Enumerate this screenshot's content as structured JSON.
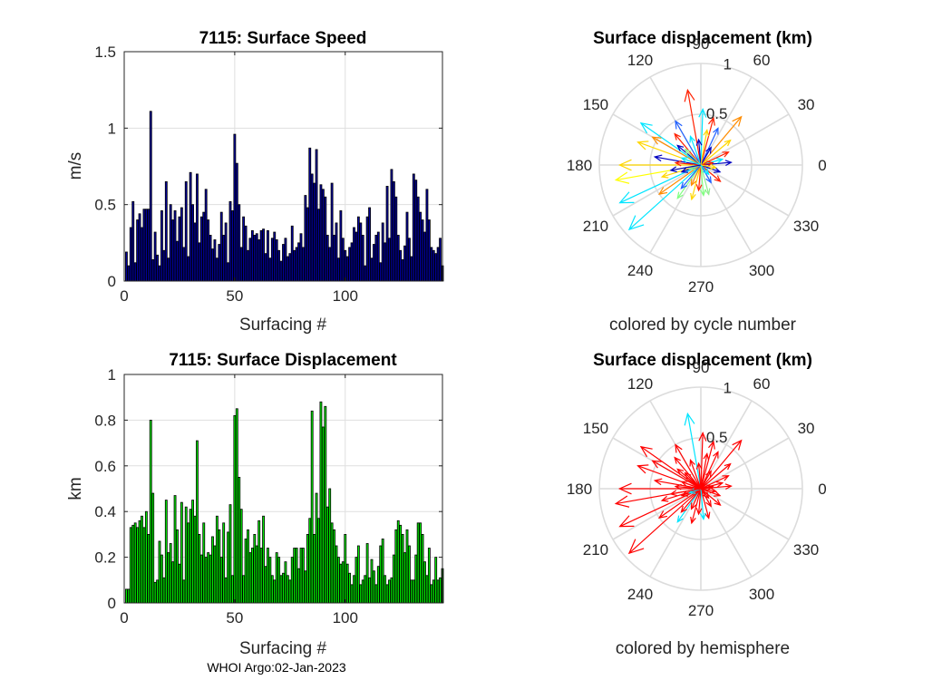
{
  "footer": "WHOI Argo:02-Jan-2023",
  "chart_data": [
    {
      "type": "bar",
      "id": "speed",
      "title": "7115: Surface Speed",
      "xlabel": "Surfacing #",
      "ylabel": "m/s",
      "xlim": [
        0,
        144
      ],
      "ylim": [
        0,
        1.5
      ],
      "xticks": [
        "0",
        "50",
        "100"
      ],
      "yticks": [
        "0",
        "0.5",
        "1",
        "1.5"
      ],
      "bar_color": "#0000a0",
      "values": [
        0.19,
        0.1,
        0.35,
        0.52,
        0.12,
        0.4,
        0.44,
        0.35,
        0.47,
        0.47,
        0.47,
        1.11,
        0.14,
        0.32,
        0.17,
        0.1,
        0.46,
        0.2,
        0.65,
        0.15,
        0.5,
        0.4,
        0.46,
        0.26,
        0.42,
        0.48,
        0.22,
        0.65,
        0.16,
        0.71,
        0.5,
        0.38,
        0.7,
        0.25,
        0.42,
        0.45,
        0.6,
        0.4,
        0.3,
        0.21,
        0.27,
        0.15,
        0.24,
        0.45,
        0.3,
        0.38,
        0.12,
        0.52,
        0.46,
        0.96,
        0.77,
        0.5,
        0.22,
        0.42,
        0.36,
        0.2,
        0.28,
        0.33,
        0.3,
        0.31,
        0.27,
        0.33,
        0.34,
        0.18,
        0.33,
        0.15,
        0.28,
        0.32,
        0.27,
        0.2,
        0.13,
        0.24,
        0.28,
        0.16,
        0.18,
        0.36,
        0.2,
        0.22,
        0.25,
        0.31,
        0.22,
        0.56,
        0.48,
        0.87,
        0.7,
        0.64,
        0.86,
        0.47,
        0.63,
        0.6,
        0.55,
        0.3,
        0.22,
        0.64,
        0.3,
        0.38,
        0.15,
        0.46,
        0.28,
        0.2,
        0.16,
        0.22,
        0.25,
        0.35,
        0.32,
        0.42,
        0.38,
        0.3,
        0.1,
        0.42,
        0.48,
        0.15,
        0.24,
        0.3,
        0.32,
        0.12,
        0.38,
        0.25,
        0.62,
        0.28,
        0.73,
        0.65,
        0.55,
        0.3,
        0.2,
        0.14,
        0.23,
        0.45,
        0.28,
        0.16,
        0.7,
        0.66,
        0.55,
        0.45,
        0.4,
        0.32,
        0.6,
        0.4,
        0.22,
        0.2,
        0.18,
        0.22,
        0.28,
        0.1
      ]
    },
    {
      "type": "bar",
      "id": "displacement",
      "title": "7115: Surface Displacement",
      "xlabel": "Surfacing #",
      "ylabel": "km",
      "xlim": [
        0,
        144
      ],
      "ylim": [
        0,
        1
      ],
      "xticks": [
        "0",
        "50",
        "100"
      ],
      "yticks": [
        "0",
        "0.2",
        "0.4",
        "0.6",
        "0.8",
        "1"
      ],
      "bar_color": "#00ee00",
      "values": [
        0.06,
        0.06,
        0.33,
        0.34,
        0.35,
        0.33,
        0.36,
        0.38,
        0.33,
        0.4,
        0.3,
        0.8,
        0.48,
        0.09,
        0.1,
        0.27,
        0.21,
        0.11,
        0.45,
        0.22,
        0.26,
        0.18,
        0.47,
        0.32,
        0.17,
        0.44,
        0.1,
        0.42,
        0.35,
        0.41,
        0.45,
        0.38,
        0.71,
        0.3,
        0.21,
        0.35,
        0.2,
        0.22,
        0.21,
        0.29,
        0.25,
        0.38,
        0.32,
        0.2,
        0.35,
        0.11,
        0.31,
        0.43,
        0.12,
        0.82,
        0.85,
        0.55,
        0.41,
        0.12,
        0.28,
        0.32,
        0.22,
        0.24,
        0.3,
        0.25,
        0.36,
        0.24,
        0.38,
        0.16,
        0.24,
        0.2,
        0.12,
        0.1,
        0.22,
        0.2,
        0.12,
        0.13,
        0.18,
        0.12,
        0.1,
        0.2,
        0.24,
        0.24,
        0.15,
        0.24,
        0.24,
        0.14,
        0.3,
        0.37,
        0.84,
        0.3,
        0.48,
        0.37,
        0.88,
        0.77,
        0.86,
        0.42,
        0.5,
        0.35,
        0.32,
        0.25,
        0.2,
        0.17,
        0.18,
        0.3,
        0.17,
        0.13,
        0.08,
        0.12,
        0.2,
        0.25,
        0.08,
        0.1,
        0.12,
        0.26,
        0.11,
        0.19,
        0.14,
        0.08,
        0.16,
        0.25,
        0.28,
        0.12,
        0.08,
        0.1,
        0.11,
        0.21,
        0.32,
        0.36,
        0.34,
        0.3,
        0.22,
        0.32,
        0.25,
        0.1,
        0.1,
        0.21,
        0.35,
        0.35,
        0.3,
        0.18,
        0.12,
        0.24,
        0.08,
        0.1,
        0.2,
        0.1,
        0.11,
        0.15
      ]
    },
    {
      "type": "polar",
      "id": "compass-cycle",
      "title": "Surface displacement (km)",
      "caption": "colored by cycle number",
      "r_max": 1,
      "rticks": [
        "0.5",
        "1"
      ],
      "angle_labels": [
        "0",
        "30",
        "60",
        "90",
        "120",
        "150",
        "180",
        "210",
        "240",
        "270",
        "300",
        "330"
      ],
      "arrows": [
        {
          "deg": 180,
          "len": 0.8,
          "color": "#ffd700"
        },
        {
          "deg": 190,
          "len": 0.85,
          "color": "#ffff00"
        },
        {
          "deg": 205,
          "len": 0.88,
          "color": "#00e5ff"
        },
        {
          "deg": 222,
          "len": 0.95,
          "color": "#00e5ff"
        },
        {
          "deg": 160,
          "len": 0.66,
          "color": "#ffd700"
        },
        {
          "deg": 145,
          "len": 0.72,
          "color": "#00e5ff"
        },
        {
          "deg": 150,
          "len": 0.55,
          "color": "#ff8c00"
        },
        {
          "deg": 100,
          "len": 0.75,
          "color": "#ff2000"
        },
        {
          "deg": 88,
          "len": 0.55,
          "color": "#00e5ff"
        },
        {
          "deg": 75,
          "len": 0.48,
          "color": "#ff2000"
        },
        {
          "deg": 50,
          "len": 0.62,
          "color": "#ff8c00"
        },
        {
          "deg": 65,
          "len": 0.4,
          "color": "#2060ff"
        },
        {
          "deg": 120,
          "len": 0.5,
          "color": "#2060ff"
        },
        {
          "deg": 130,
          "len": 0.4,
          "color": "#ff2000"
        },
        {
          "deg": 170,
          "len": 0.46,
          "color": "#0000c0"
        },
        {
          "deg": 197,
          "len": 0.4,
          "color": "#ffd700"
        },
        {
          "deg": 215,
          "len": 0.5,
          "color": "#ff8c00"
        },
        {
          "deg": 235,
          "len": 0.4,
          "color": "#80ff80"
        },
        {
          "deg": 255,
          "len": 0.35,
          "color": "#ffd700"
        },
        {
          "deg": 265,
          "len": 0.25,
          "color": "#ff2000"
        },
        {
          "deg": 285,
          "len": 0.3,
          "color": "#90ee90"
        },
        {
          "deg": 300,
          "len": 0.2,
          "color": "#2060ff"
        },
        {
          "deg": 320,
          "len": 0.25,
          "color": "#ff2000"
        },
        {
          "deg": 340,
          "len": 0.2,
          "color": "#0000c0"
        },
        {
          "deg": 5,
          "len": 0.3,
          "color": "#0000c0"
        },
        {
          "deg": 15,
          "len": 0.22,
          "color": "#00e5ff"
        },
        {
          "deg": 25,
          "len": 0.3,
          "color": "#ff2000"
        },
        {
          "deg": 40,
          "len": 0.38,
          "color": "#ffd700"
        },
        {
          "deg": 110,
          "len": 0.3,
          "color": "#00e5ff"
        },
        {
          "deg": 140,
          "len": 0.3,
          "color": "#0000c0"
        },
        {
          "deg": 175,
          "len": 0.25,
          "color": "#ff2000"
        },
        {
          "deg": 200,
          "len": 0.2,
          "color": "#0000c0"
        },
        {
          "deg": 245,
          "len": 0.22,
          "color": "#ff8c00"
        },
        {
          "deg": 230,
          "len": 0.3,
          "color": "#2060ff"
        },
        {
          "deg": 275,
          "len": 0.3,
          "color": "#80ff80"
        },
        {
          "deg": 95,
          "len": 0.25,
          "color": "#0000c0"
        },
        {
          "deg": 60,
          "len": 0.2,
          "color": "#0000c0"
        },
        {
          "deg": 160,
          "len": 0.2,
          "color": "#00e5ff"
        },
        {
          "deg": 10,
          "len": 0.12,
          "color": "#ff2000"
        },
        {
          "deg": 350,
          "len": 0.15,
          "color": "#ffd700"
        },
        {
          "deg": 200,
          "len": 0.12,
          "color": "#90ee90"
        },
        {
          "deg": 310,
          "len": 0.12,
          "color": "#00e5ff"
        },
        {
          "deg": 80,
          "len": 0.35,
          "color": "#ffd700"
        },
        {
          "deg": 135,
          "len": 0.22,
          "color": "#90ee90"
        },
        {
          "deg": 190,
          "len": 0.3,
          "color": "#0000c0"
        }
      ]
    },
    {
      "type": "polar",
      "id": "compass-hemisphere",
      "title": "Surface displacement (km)",
      "caption": "colored by hemisphere",
      "r_max": 1,
      "rticks": [
        "0.5",
        "1"
      ],
      "angle_labels": [
        "0",
        "30",
        "60",
        "90",
        "120",
        "150",
        "180",
        "210",
        "240",
        "270",
        "300",
        "330"
      ],
      "arrows": [
        {
          "deg": 180,
          "len": 0.8,
          "color": "#ff0000"
        },
        {
          "deg": 190,
          "len": 0.85,
          "color": "#ff0000"
        },
        {
          "deg": 205,
          "len": 0.88,
          "color": "#ff0000"
        },
        {
          "deg": 222,
          "len": 0.95,
          "color": "#ff0000"
        },
        {
          "deg": 160,
          "len": 0.66,
          "color": "#ff0000"
        },
        {
          "deg": 145,
          "len": 0.72,
          "color": "#ff0000"
        },
        {
          "deg": 150,
          "len": 0.55,
          "color": "#ff0000"
        },
        {
          "deg": 100,
          "len": 0.75,
          "color": "#00e5ff"
        },
        {
          "deg": 88,
          "len": 0.55,
          "color": "#ff0000"
        },
        {
          "deg": 75,
          "len": 0.48,
          "color": "#ff0000"
        },
        {
          "deg": 50,
          "len": 0.62,
          "color": "#ff0000"
        },
        {
          "deg": 65,
          "len": 0.4,
          "color": "#ff0000"
        },
        {
          "deg": 120,
          "len": 0.5,
          "color": "#ff0000"
        },
        {
          "deg": 130,
          "len": 0.4,
          "color": "#ff0000"
        },
        {
          "deg": 170,
          "len": 0.46,
          "color": "#ff0000"
        },
        {
          "deg": 197,
          "len": 0.4,
          "color": "#ff0000"
        },
        {
          "deg": 215,
          "len": 0.5,
          "color": "#ff0000"
        },
        {
          "deg": 235,
          "len": 0.4,
          "color": "#00e5ff"
        },
        {
          "deg": 255,
          "len": 0.35,
          "color": "#ff0000"
        },
        {
          "deg": 265,
          "len": 0.25,
          "color": "#ff0000"
        },
        {
          "deg": 285,
          "len": 0.3,
          "color": "#ff0000"
        },
        {
          "deg": 300,
          "len": 0.2,
          "color": "#ff0000"
        },
        {
          "deg": 320,
          "len": 0.25,
          "color": "#ff0000"
        },
        {
          "deg": 340,
          "len": 0.2,
          "color": "#ff0000"
        },
        {
          "deg": 5,
          "len": 0.3,
          "color": "#ff0000"
        },
        {
          "deg": 15,
          "len": 0.22,
          "color": "#ff0000"
        },
        {
          "deg": 25,
          "len": 0.3,
          "color": "#ff0000"
        },
        {
          "deg": 40,
          "len": 0.38,
          "color": "#ff0000"
        },
        {
          "deg": 110,
          "len": 0.3,
          "color": "#ff0000"
        },
        {
          "deg": 140,
          "len": 0.3,
          "color": "#ff0000"
        },
        {
          "deg": 175,
          "len": 0.25,
          "color": "#ff0000"
        },
        {
          "deg": 200,
          "len": 0.2,
          "color": "#ff0000"
        },
        {
          "deg": 245,
          "len": 0.22,
          "color": "#ff0000"
        },
        {
          "deg": 230,
          "len": 0.3,
          "color": "#ff0000"
        },
        {
          "deg": 275,
          "len": 0.3,
          "color": "#00e5ff"
        },
        {
          "deg": 95,
          "len": 0.25,
          "color": "#ff0000"
        },
        {
          "deg": 60,
          "len": 0.2,
          "color": "#ff0000"
        },
        {
          "deg": 160,
          "len": 0.2,
          "color": "#ff0000"
        },
        {
          "deg": 10,
          "len": 0.12,
          "color": "#ff0000"
        },
        {
          "deg": 350,
          "len": 0.15,
          "color": "#ff0000"
        },
        {
          "deg": 200,
          "len": 0.12,
          "color": "#00e5ff"
        },
        {
          "deg": 310,
          "len": 0.12,
          "color": "#ff0000"
        },
        {
          "deg": 80,
          "len": 0.35,
          "color": "#ff0000"
        },
        {
          "deg": 135,
          "len": 0.22,
          "color": "#ff0000"
        },
        {
          "deg": 190,
          "len": 0.3,
          "color": "#ff0000"
        }
      ]
    }
  ]
}
